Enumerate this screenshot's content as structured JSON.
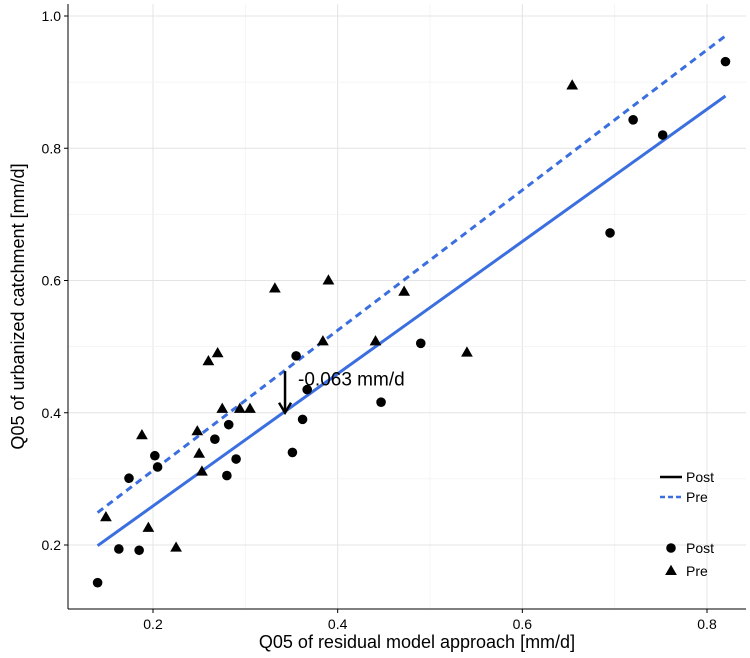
{
  "chart_data": {
    "type": "scatter",
    "title": "",
    "xlabel": "Q05 of residual model approach [mm/d]",
    "ylabel": "Q05 of urbanized catchment [mm/d]",
    "xlim": [
      0.12,
      0.83
    ],
    "ylim": [
      0.12,
      1.0
    ],
    "x_ticks": [
      0.2,
      0.4,
      0.6,
      0.8
    ],
    "x_tick_labels": [
      "0.2",
      "0.4",
      "0.6",
      "0.8"
    ],
    "y_ticks": [
      0.2,
      0.4,
      0.6,
      0.8,
      1.0
    ],
    "y_tick_labels": [
      "0.2",
      "0.4",
      "0.6",
      "0.8",
      "1.0"
    ],
    "grid": true,
    "series": [
      {
        "name": "Post",
        "marker": "circle",
        "points": [
          {
            "x": 0.14,
            "y": 0.143
          },
          {
            "x": 0.163,
            "y": 0.194
          },
          {
            "x": 0.174,
            "y": 0.301
          },
          {
            "x": 0.185,
            "y": 0.192
          },
          {
            "x": 0.202,
            "y": 0.335
          },
          {
            "x": 0.205,
            "y": 0.318
          },
          {
            "x": 0.267,
            "y": 0.36
          },
          {
            "x": 0.28,
            "y": 0.305
          },
          {
            "x": 0.282,
            "y": 0.382
          },
          {
            "x": 0.29,
            "y": 0.33
          },
          {
            "x": 0.351,
            "y": 0.34
          },
          {
            "x": 0.355,
            "y": 0.486
          },
          {
            "x": 0.362,
            "y": 0.39
          },
          {
            "x": 0.367,
            "y": 0.435
          },
          {
            "x": 0.447,
            "y": 0.416
          },
          {
            "x": 0.49,
            "y": 0.505
          },
          {
            "x": 0.695,
            "y": 0.672
          },
          {
            "x": 0.72,
            "y": 0.843
          },
          {
            "x": 0.752,
            "y": 0.82
          },
          {
            "x": 0.82,
            "y": 0.931
          }
        ]
      },
      {
        "name": "Pre",
        "marker": "triangle",
        "points": [
          {
            "x": 0.149,
            "y": 0.242
          },
          {
            "x": 0.188,
            "y": 0.366
          },
          {
            "x": 0.195,
            "y": 0.226
          },
          {
            "x": 0.225,
            "y": 0.196
          },
          {
            "x": 0.248,
            "y": 0.372
          },
          {
            "x": 0.25,
            "y": 0.338
          },
          {
            "x": 0.253,
            "y": 0.311
          },
          {
            "x": 0.26,
            "y": 0.478
          },
          {
            "x": 0.27,
            "y": 0.49
          },
          {
            "x": 0.275,
            "y": 0.406
          },
          {
            "x": 0.294,
            "y": 0.406
          },
          {
            "x": 0.305,
            "y": 0.406
          },
          {
            "x": 0.332,
            "y": 0.588
          },
          {
            "x": 0.384,
            "y": 0.508
          },
          {
            "x": 0.39,
            "y": 0.6
          },
          {
            "x": 0.441,
            "y": 0.508
          },
          {
            "x": 0.472,
            "y": 0.583
          },
          {
            "x": 0.54,
            "y": 0.491
          },
          {
            "x": 0.654,
            "y": 0.895
          }
        ]
      }
    ],
    "lines": [
      {
        "name": "Post",
        "style": "solid",
        "color": "#3B6FE0",
        "x": [
          0.14,
          0.82
        ],
        "y": [
          0.199,
          0.879
        ]
      },
      {
        "name": "Pre",
        "style": "dashed",
        "color": "#3B6FE0",
        "x": [
          0.14,
          0.82
        ],
        "y": [
          0.249,
          0.97
        ]
      }
    ],
    "annotation": {
      "text": "-0.063 mm/d",
      "arrow_x": 0.343,
      "arrow_y_start": 0.463,
      "arrow_y_end": 0.4
    },
    "legend": {
      "placement": "bottom-right",
      "line_entries": [
        {
          "label": "Post",
          "style": "solid"
        },
        {
          "label": "Pre",
          "style": "dashed"
        }
      ],
      "marker_entries": [
        {
          "label": "Post",
          "marker": "circle"
        },
        {
          "label": "Pre",
          "marker": "triangle"
        }
      ]
    }
  }
}
